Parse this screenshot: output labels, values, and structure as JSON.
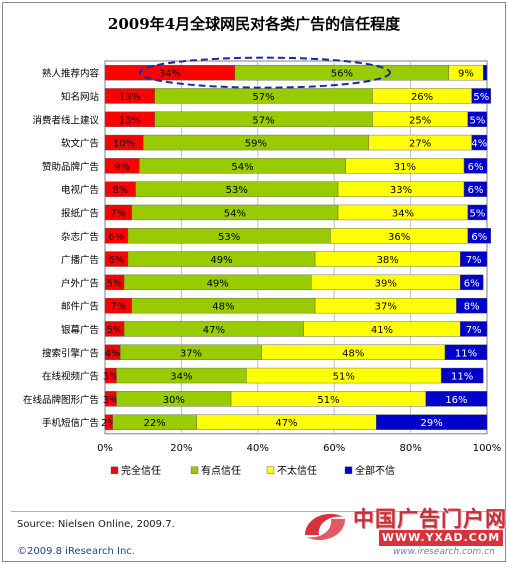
{
  "chart_data": {
    "type": "bar",
    "orientation": "horizontal",
    "stacked": true,
    "title": "2009年4月全球网民对各类广告的信任程度",
    "categories": [
      "熟人推荐内容",
      "知名网站",
      "消费者线上建议",
      "软文广告",
      "赞助品牌广告",
      "电视广告",
      "报纸广告",
      "杂志广告",
      "广播广告",
      "户外广告",
      "邮件广告",
      "银幕广告",
      "搜索引擎广告",
      "在线视频广告",
      "在线品牌图形广告",
      "手机短信广告"
    ],
    "series": [
      {
        "name": "完全信任",
        "color": "#ff0000",
        "values": [
          34,
          13,
          13,
          10,
          9,
          8,
          7,
          6,
          6,
          5,
          7,
          5,
          4,
          3,
          3,
          2
        ],
        "labels": [
          "34%",
          "13%",
          "13%",
          "10%",
          "9%",
          "8%",
          "7%",
          "6%",
          "6%",
          "5%",
          "7%",
          "5%",
          "4%",
          "3%",
          "3%",
          "2%"
        ]
      },
      {
        "name": "有点信任",
        "color": "#99cc00",
        "values": [
          56,
          57,
          57,
          59,
          54,
          53,
          54,
          53,
          49,
          49,
          48,
          47,
          37,
          34,
          30,
          22
        ],
        "labels": [
          "56%",
          "57%",
          "57%",
          "59%",
          "54%",
          "53%",
          "54%",
          "53%",
          "49%",
          "49%",
          "48%",
          "47%",
          "37%",
          "34%",
          "30%",
          "22%"
        ]
      },
      {
        "name": "不太信任",
        "color": "#ffff00",
        "values": [
          9,
          26,
          25,
          27,
          31,
          33,
          34,
          36,
          38,
          39,
          37,
          41,
          48,
          51,
          51,
          47
        ],
        "labels": [
          "9%",
          "26%",
          "25%",
          "27%",
          "31%",
          "33%",
          "34%",
          "36%",
          "38%",
          "39%",
          "37%",
          "41%",
          "48%",
          "51%",
          "51%",
          "47%"
        ]
      },
      {
        "name": "全部不信",
        "color": "#0000cc",
        "values": [
          1,
          5,
          5,
          4,
          6,
          6,
          5,
          6,
          7,
          6,
          8,
          7,
          11,
          11,
          16,
          29
        ],
        "labels": [
          "",
          "5%",
          "5%",
          "4%",
          "6%",
          "6%",
          "5%",
          "6%",
          "7%",
          "6%",
          "8%",
          "7%",
          "11%",
          "11%",
          "16%",
          "29%"
        ]
      }
    ],
    "xlim": [
      0,
      100
    ],
    "xticks": [
      "0%",
      "20%",
      "40%",
      "60%",
      "80%",
      "100%"
    ],
    "grid": true,
    "legend_position": "bottom",
    "highlight": "dashed ellipse around first row"
  },
  "footer": {
    "source": "Source: Nielsen Online, 2009.7.",
    "copyright": "©2009.8 iResearch Inc."
  },
  "watermark": {
    "text": "中国广告门户网",
    "domain": "WWW.YXAD.COM",
    "url": "www.iresearch.com.cn",
    "brand_color": "#d8323c"
  }
}
